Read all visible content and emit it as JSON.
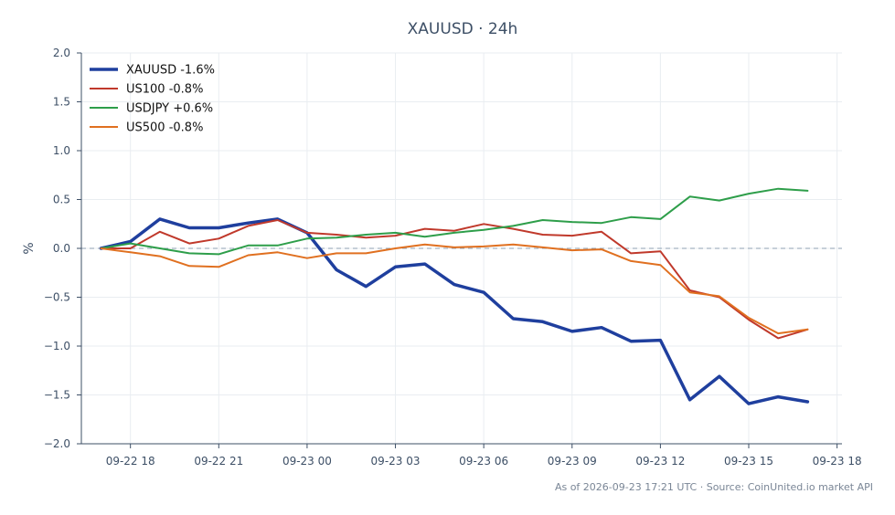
{
  "chart_data": {
    "type": "line",
    "title": "XAUUSD · 24h",
    "xlabel": "",
    "ylabel": "%",
    "xticks": [
      "09-22 18",
      "09-22 21",
      "09-23 00",
      "09-23 03",
      "09-23 06",
      "09-23 09",
      "09-23 12",
      "09-23 15",
      "09-23 18"
    ],
    "yticks": [
      "2.0",
      "1.5",
      "1.0",
      "0.5",
      "0.0",
      "−0.5",
      "−1.0",
      "−1.5",
      "−2.0"
    ],
    "ylim": [
      -2.0,
      2.0
    ],
    "xlim": [
      "09-22 16:20",
      "09-23 18:10"
    ],
    "grid": true,
    "zero_reference_line": 0.0,
    "legend_position": "top-left",
    "x": [
      "09-22 17:00",
      "09-22 18:00",
      "09-22 19:00",
      "09-22 20:00",
      "09-22 21:00",
      "09-22 22:00",
      "09-22 23:00",
      "09-23 00:00",
      "09-23 01:00",
      "09-23 02:00",
      "09-23 03:00",
      "09-23 04:00",
      "09-23 05:00",
      "09-23 06:00",
      "09-23 07:00",
      "09-23 08:00",
      "09-23 09:00",
      "09-23 10:00",
      "09-23 11:00",
      "09-23 12:00",
      "09-23 13:00",
      "09-23 14:00",
      "09-23 15:00",
      "09-23 16:00",
      "09-23 17:00"
    ],
    "series": [
      {
        "name": "XAUUSD -1.6%",
        "color": "#1f3f9e",
        "width": 3.5,
        "values": [
          0.0,
          0.07,
          0.3,
          0.21,
          0.21,
          0.26,
          0.3,
          0.16,
          -0.22,
          -0.39,
          -0.19,
          -0.16,
          -0.37,
          -0.45,
          -0.72,
          -0.75,
          -0.85,
          -0.81,
          -0.95,
          -0.94,
          -1.55,
          -1.31,
          -1.59,
          -1.52,
          -1.57
        ]
      },
      {
        "name": "US100 -0.8%",
        "color": "#c0392b",
        "width": 2,
        "values": [
          0.0,
          0.0,
          0.17,
          0.05,
          0.1,
          0.23,
          0.29,
          0.16,
          0.14,
          0.11,
          0.13,
          0.2,
          0.18,
          0.25,
          0.2,
          0.14,
          0.13,
          0.17,
          -0.05,
          -0.03,
          -0.43,
          -0.5,
          -0.73,
          -0.92,
          -0.83
        ]
      },
      {
        "name": "USDJPY +0.6%",
        "color": "#2e9e4a",
        "width": 2,
        "values": [
          0.0,
          0.05,
          0.0,
          -0.05,
          -0.06,
          0.03,
          0.03,
          0.1,
          0.11,
          0.14,
          0.16,
          0.12,
          0.16,
          0.19,
          0.23,
          0.29,
          0.27,
          0.26,
          0.32,
          0.3,
          0.53,
          0.49,
          0.56,
          0.61,
          0.59
        ]
      },
      {
        "name": "US500 -0.8%",
        "color": "#e07020",
        "width": 2,
        "values": [
          0.0,
          -0.04,
          -0.08,
          -0.18,
          -0.19,
          -0.07,
          -0.04,
          -0.1,
          -0.05,
          -0.05,
          0.0,
          0.04,
          0.01,
          0.02,
          0.04,
          0.01,
          -0.02,
          -0.01,
          -0.13,
          -0.17,
          -0.45,
          -0.49,
          -0.71,
          -0.87,
          -0.83
        ]
      }
    ],
    "footer": "As of 2026-09-23 17:21 UTC · Source: CoinUnited.io market API"
  }
}
